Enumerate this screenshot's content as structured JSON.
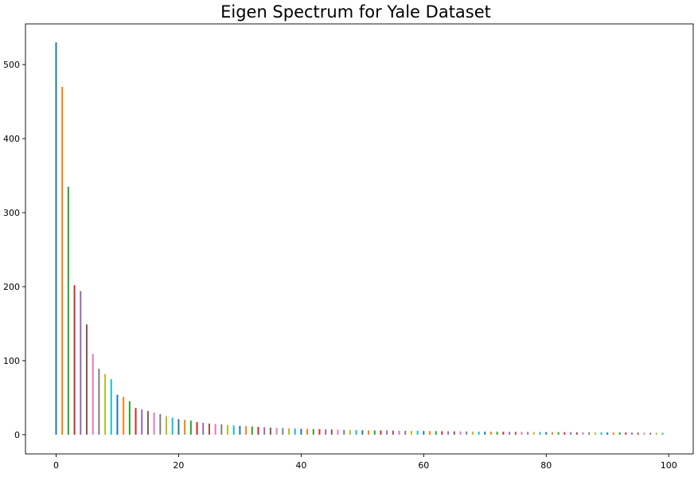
{
  "chart_data": {
    "type": "bar",
    "title": "Eigen Spectrum for Yale Dataset",
    "xlabel": "",
    "ylabel": "",
    "xlim": [
      -5,
      104
    ],
    "ylim": [
      -26,
      555
    ],
    "x_ticks": [
      0,
      20,
      40,
      60,
      80,
      100
    ],
    "y_ticks": [
      0,
      100,
      200,
      300,
      400,
      500
    ],
    "grid": false,
    "legend": "none",
    "colors": [
      "#1f77b4",
      "#ff7f0e",
      "#2ca02c",
      "#d62728",
      "#9467bd",
      "#8c564b",
      "#e377c2",
      "#7f7f7f",
      "#bcbd22",
      "#17becf"
    ],
    "x": [
      0,
      1,
      2,
      3,
      4,
      5,
      6,
      7,
      8,
      9,
      10,
      11,
      12,
      13,
      14,
      15,
      16,
      17,
      18,
      19,
      20,
      21,
      22,
      23,
      24,
      25,
      26,
      27,
      28,
      29,
      30,
      31,
      32,
      33,
      34,
      35,
      36,
      37,
      38,
      39,
      40,
      41,
      42,
      43,
      44,
      45,
      46,
      47,
      48,
      49,
      50,
      51,
      52,
      53,
      54,
      55,
      56,
      57,
      58,
      59,
      60,
      61,
      62,
      63,
      64,
      65,
      66,
      67,
      68,
      69,
      70,
      71,
      72,
      73,
      74,
      75,
      76,
      77,
      78,
      79,
      80,
      81,
      82,
      83,
      84,
      85,
      86,
      87,
      88,
      89,
      90,
      91,
      92,
      93,
      94,
      95,
      96,
      97,
      98,
      99
    ],
    "values": [
      530,
      470,
      335,
      202,
      194,
      149,
      109,
      89,
      82,
      75,
      54,
      51,
      45,
      36,
      34,
      32,
      30,
      28,
      25,
      23,
      21,
      20,
      19,
      17,
      16,
      15,
      14.5,
      14,
      13,
      12.5,
      12,
      11.5,
      11,
      10.5,
      10,
      9.5,
      9.2,
      8.9,
      8.6,
      8.3,
      8,
      7.8,
      7.6,
      7.4,
      7.2,
      7,
      6.8,
      6.6,
      6.4,
      6.2,
      6,
      5.9,
      5.8,
      5.7,
      5.6,
      5.5,
      5.4,
      5.3,
      5.2,
      5.1,
      5,
      4.9,
      4.8,
      4.7,
      4.6,
      4.5,
      4.4,
      4.3,
      4.2,
      4.1,
      4,
      3.95,
      3.9,
      3.85,
      3.8,
      3.75,
      3.7,
      3.65,
      3.6,
      3.55,
      3.5,
      3.45,
      3.4,
      3.35,
      3.3,
      3.25,
      3.2,
      3.15,
      3.1,
      3.05,
      3,
      2.95,
      2.9,
      2.85,
      2.8,
      2.75,
      2.7,
      2.65,
      2.6,
      2.55
    ]
  }
}
